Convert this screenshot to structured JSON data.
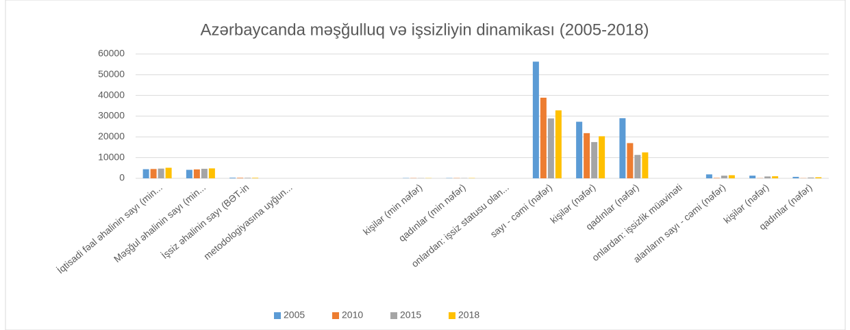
{
  "chart_data": {
    "type": "bar",
    "title": "Azərbaycanda məşğulluq və işsizliyin dinamikası (2005-2018)",
    "categories": [
      "İqtisadi fəal əhalinin sayı (min...",
      "Məşğul əhalinin sayı (min...",
      "İşsiz əhalinin sayı (BƏT-in",
      "metodologiyasına uyğun...",
      null,
      null,
      "kişilər (min nəfər)",
      "qadınlar (min nəfər)",
      "onlardan: işsiz statusu olan...",
      "sayı - cəmi (nəfər)",
      "kişilər (nəfər)",
      "qadınlar (nəfər)",
      "onlardan: işsizlik müavinəti",
      "alanların sayı - cəmi (nəfər)",
      "kişilər (nəfər)",
      "qadınlar (nəfər)"
    ],
    "series": [
      {
        "name": "2005",
        "color": "#5b9bd5",
        "values": [
          4400,
          4100,
          300,
          null,
          null,
          null,
          150,
          150,
          null,
          56300,
          27300,
          29000,
          null,
          1900,
          1300,
          700
        ]
      },
      {
        "name": "2010",
        "color": "#ed7d31",
        "values": [
          4500,
          4300,
          250,
          null,
          null,
          null,
          120,
          130,
          null,
          38900,
          21800,
          17000,
          null,
          200,
          100,
          100
        ]
      },
      {
        "name": "2015",
        "color": "#a5a5a5",
        "values": [
          4700,
          4600,
          250,
          null,
          null,
          null,
          110,
          140,
          null,
          28900,
          17500,
          11300,
          null,
          1300,
          900,
          400
        ]
      },
      {
        "name": "2018",
        "color": "#ffc000",
        "values": [
          5100,
          4800,
          250,
          null,
          null,
          null,
          110,
          140,
          null,
          32800,
          20300,
          12500,
          null,
          1500,
          1000,
          500
        ]
      }
    ],
    "ylim": [
      0,
      60000
    ],
    "yticks": [
      0,
      10000,
      20000,
      30000,
      40000,
      50000,
      60000
    ],
    "grid": true,
    "legend": "bottom"
  }
}
